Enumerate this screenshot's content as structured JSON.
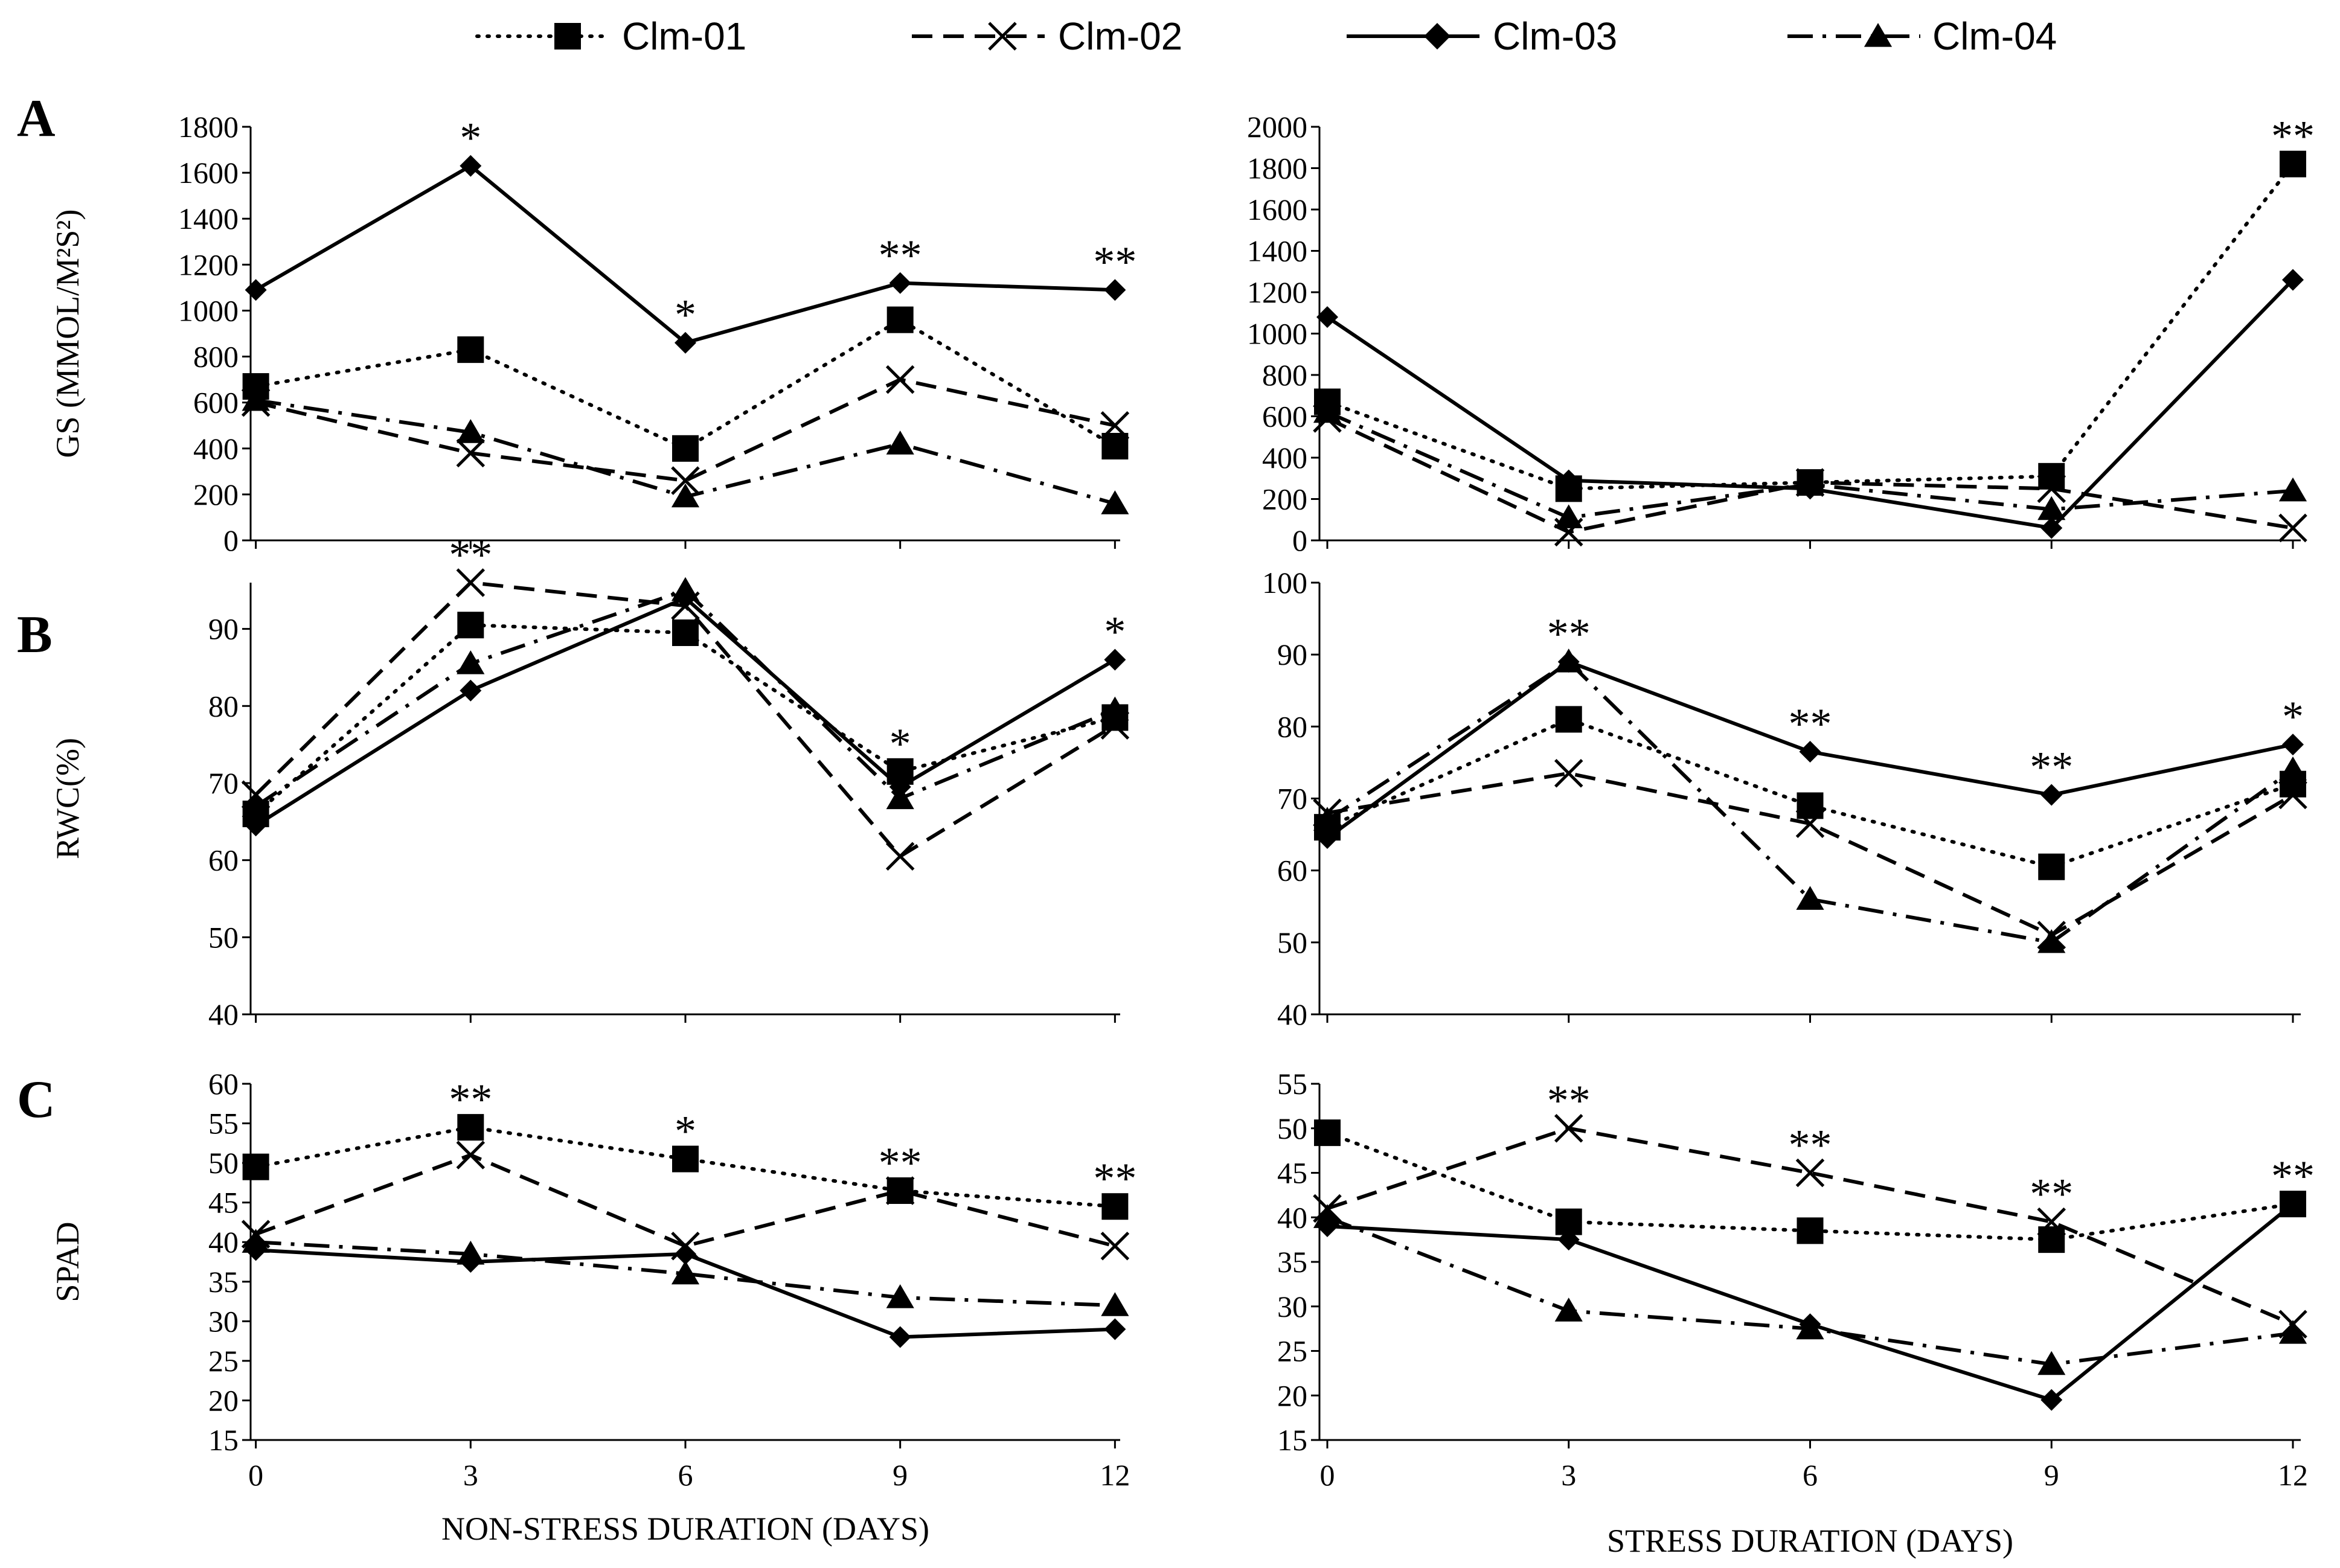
{
  "legend": [
    {
      "name": "Clm-01",
      "marker": "square",
      "dash": "dotted"
    },
    {
      "name": "Clm-02",
      "marker": "x",
      "dash": "dashed"
    },
    {
      "name": "Clm-03",
      "marker": "diamond",
      "dash": "solid"
    },
    {
      "name": "Clm-04",
      "marker": "triangle",
      "dash": "dashdot"
    }
  ],
  "rows": [
    {
      "letter": "A",
      "ylabel": "GS (MMOL/M²S²)"
    },
    {
      "letter": "B",
      "ylabel": "RWC(%)"
    },
    {
      "letter": "C",
      "ylabel": "SPAD"
    }
  ],
  "xlabels": {
    "left": "NON-STRESS DURATION (DAYS)",
    "right": "STRESS DURATION (DAYS)"
  },
  "chart_data": [
    {
      "type": "line",
      "panel": "A-left",
      "ylabel": "GS (MMOL/M²S²)",
      "xlabel": "NON-STRESS DURATION (DAYS)",
      "x": [
        0,
        3,
        6,
        9,
        12
      ],
      "ylim": [
        0,
        1800
      ],
      "yticks": [
        0,
        200,
        400,
        600,
        800,
        1000,
        1200,
        1400,
        1600,
        1800
      ],
      "series": [
        {
          "name": "Clm-01",
          "values": [
            670,
            830,
            400,
            960,
            410
          ]
        },
        {
          "name": "Clm-02",
          "values": [
            600,
            380,
            260,
            700,
            500
          ]
        },
        {
          "name": "Clm-03",
          "values": [
            1090,
            1630,
            860,
            1120,
            1090
          ]
        },
        {
          "name": "Clm-04",
          "values": [
            610,
            470,
            190,
            420,
            160
          ]
        }
      ],
      "significance": [
        "",
        "*",
        "*",
        "**",
        "**"
      ]
    },
    {
      "type": "line",
      "panel": "A-right",
      "ylabel": "",
      "xlabel": "STRESS DURATION (DAYS)",
      "x": [
        0,
        3,
        6,
        9,
        12
      ],
      "ylim": [
        0,
        2000
      ],
      "yticks": [
        0,
        200,
        400,
        600,
        800,
        1000,
        1200,
        1400,
        1600,
        1800,
        2000
      ],
      "series": [
        {
          "name": "Clm-01",
          "values": [
            670,
            250,
            280,
            310,
            1820
          ]
        },
        {
          "name": "Clm-02",
          "values": [
            590,
            40,
            280,
            250,
            60
          ]
        },
        {
          "name": "Clm-03",
          "values": [
            1080,
            290,
            250,
            60,
            1260
          ]
        },
        {
          "name": "Clm-04",
          "values": [
            620,
            110,
            270,
            150,
            240
          ]
        }
      ],
      "significance": [
        "",
        "",
        "",
        "",
        "**"
      ]
    },
    {
      "type": "line",
      "panel": "B-left",
      "ylabel": "RWC(%)",
      "xlabel": "NON-STRESS DURATION (DAYS)",
      "x": [
        0,
        3,
        6,
        9,
        12
      ],
      "ylim": [
        40,
        96
      ],
      "yticks": [
        40,
        50,
        60,
        70,
        80,
        90
      ],
      "series": [
        {
          "name": "Clm-01",
          "values": [
            66,
            90.5,
            89.5,
            71.5,
            78.5
          ]
        },
        {
          "name": "Clm-02",
          "values": [
            68.5,
            96,
            93,
            60.5,
            77.5
          ]
        },
        {
          "name": "Clm-03",
          "values": [
            64.5,
            82,
            94,
            69.5,
            86
          ]
        },
        {
          "name": "Clm-04",
          "values": [
            67,
            85.5,
            95,
            68,
            79.5
          ]
        }
      ],
      "significance": [
        "",
        "**",
        "",
        "*",
        "*"
      ]
    },
    {
      "type": "line",
      "panel": "B-right",
      "ylabel": "",
      "xlabel": "STRESS DURATION (DAYS)",
      "x": [
        0,
        3,
        6,
        9,
        12
      ],
      "ylim": [
        40,
        100
      ],
      "yticks": [
        40,
        50,
        60,
        70,
        80,
        90,
        100
      ],
      "series": [
        {
          "name": "Clm-01",
          "values": [
            66,
            81,
            69,
            60.5,
            72
          ]
        },
        {
          "name": "Clm-02",
          "values": [
            68,
            73.5,
            66.5,
            51,
            70.5
          ]
        },
        {
          "name": "Clm-03",
          "values": [
            64.5,
            89,
            76.5,
            70.5,
            77.5
          ]
        },
        {
          "name": "Clm-04",
          "values": [
            67,
            89,
            56,
            50,
            74
          ]
        }
      ],
      "significance": [
        "",
        "**",
        "**",
        "**",
        "*"
      ]
    },
    {
      "type": "line",
      "panel": "C-left",
      "ylabel": "SPAD",
      "xlabel": "NON-STRESS DURATION (DAYS)",
      "x": [
        0,
        3,
        6,
        9,
        12
      ],
      "ylim": [
        15,
        60
      ],
      "yticks": [
        15,
        20,
        25,
        30,
        35,
        40,
        45,
        50,
        55,
        60
      ],
      "series": [
        {
          "name": "Clm-01",
          "values": [
            49.5,
            54.5,
            50.5,
            46.5,
            44.5
          ]
        },
        {
          "name": "Clm-02",
          "values": [
            41,
            51,
            39.5,
            46.5,
            39.5
          ]
        },
        {
          "name": "Clm-03",
          "values": [
            39,
            37.5,
            38.5,
            28,
            29
          ]
        },
        {
          "name": "Clm-04",
          "values": [
            40,
            38.5,
            36,
            33,
            32
          ]
        }
      ],
      "significance": [
        "",
        "**",
        "*",
        "**",
        "**"
      ]
    },
    {
      "type": "line",
      "panel": "C-right",
      "ylabel": "",
      "xlabel": "STRESS DURATION (DAYS)",
      "x": [
        0,
        3,
        6,
        9,
        12
      ],
      "ylim": [
        15,
        55
      ],
      "yticks": [
        15,
        20,
        25,
        30,
        35,
        40,
        45,
        50,
        55
      ],
      "series": [
        {
          "name": "Clm-01",
          "values": [
            49.5,
            39.5,
            38.5,
            37.5,
            41.5
          ]
        },
        {
          "name": "Clm-02",
          "values": [
            41,
            50,
            45,
            39.5,
            28
          ]
        },
        {
          "name": "Clm-03",
          "values": [
            39,
            37.5,
            28,
            19.5,
            41.5
          ]
        },
        {
          "name": "Clm-04",
          "values": [
            40,
            29.5,
            27.5,
            23.5,
            27
          ]
        }
      ],
      "significance": [
        "",
        "**",
        "**",
        "**",
        "**"
      ]
    }
  ]
}
